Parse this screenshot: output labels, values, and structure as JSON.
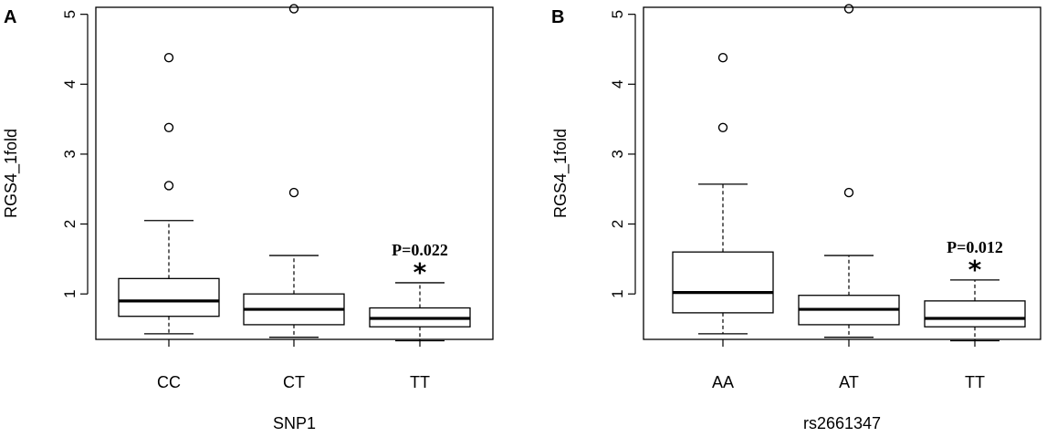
{
  "chart_data": [
    {
      "type": "box",
      "panel_label": "A",
      "xlabel": "SNP1",
      "ylabel": "RGS4_1fold",
      "ylim": [
        0.35,
        5.1
      ],
      "yticks": [
        1,
        2,
        3,
        4,
        5
      ],
      "categories": [
        "CC",
        "CT",
        "TT"
      ],
      "boxes": [
        {
          "category": "CC",
          "whisker_low": 0.43,
          "q1": 0.68,
          "median": 0.9,
          "q3": 1.22,
          "whisker_high": 2.05,
          "outliers": [
            2.55,
            3.38,
            4.38
          ]
        },
        {
          "category": "CT",
          "whisker_low": 0.38,
          "q1": 0.56,
          "median": 0.78,
          "q3": 1.0,
          "whisker_high": 1.55,
          "outliers": [
            2.45,
            5.08
          ]
        },
        {
          "category": "TT",
          "whisker_low": 0.33,
          "q1": 0.53,
          "median": 0.65,
          "q3": 0.8,
          "whisker_high": 1.16,
          "outliers": [],
          "annotation": {
            "star": "*",
            "p_value": "P=0.022"
          }
        }
      ]
    },
    {
      "type": "box",
      "panel_label": "B",
      "xlabel": "rs2661347",
      "ylabel": "RGS4_1fold",
      "ylim": [
        0.35,
        5.1
      ],
      "yticks": [
        1,
        2,
        3,
        4,
        5
      ],
      "categories": [
        "AA",
        "AT",
        "TT"
      ],
      "boxes": [
        {
          "category": "AA",
          "whisker_low": 0.43,
          "q1": 0.73,
          "median": 1.02,
          "q3": 1.6,
          "whisker_high": 2.57,
          "outliers": [
            3.38,
            4.38
          ]
        },
        {
          "category": "AT",
          "whisker_low": 0.38,
          "q1": 0.56,
          "median": 0.78,
          "q3": 0.98,
          "whisker_high": 1.55,
          "outliers": [
            2.45,
            5.08
          ]
        },
        {
          "category": "TT",
          "whisker_low": 0.33,
          "q1": 0.53,
          "median": 0.65,
          "q3": 0.9,
          "whisker_high": 1.2,
          "outliers": [],
          "annotation": {
            "star": "*",
            "p_value": "P=0.012"
          }
        }
      ]
    }
  ]
}
